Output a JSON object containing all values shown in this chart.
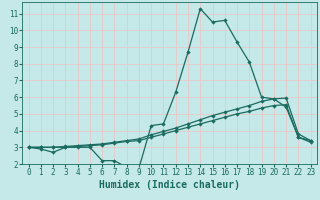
{
  "background_color": "#c5e8e8",
  "grid_color": "#e8c8c8",
  "line_color": "#1a6b60",
  "series": {
    "line1_x": [
      0,
      1,
      2,
      3,
      4,
      5,
      6,
      7,
      8,
      9,
      10,
      11,
      12,
      13,
      14,
      15,
      16,
      17,
      18,
      19,
      20,
      21,
      22,
      23
    ],
    "line1_y": [
      3.0,
      2.9,
      2.7,
      3.0,
      3.0,
      3.0,
      2.2,
      2.2,
      1.8,
      1.75,
      4.3,
      4.4,
      6.3,
      8.7,
      11.3,
      10.5,
      10.6,
      9.3,
      8.1,
      6.0,
      5.9,
      5.4,
      3.6,
      3.4
    ],
    "line2_x": [
      0,
      1,
      2,
      3,
      4,
      5,
      6,
      7,
      8,
      9,
      10,
      11,
      12,
      13,
      14,
      15,
      16,
      17,
      18,
      19,
      20,
      21,
      22,
      23
    ],
    "line2_y": [
      3.0,
      3.0,
      3.0,
      3.05,
      3.1,
      3.15,
      3.2,
      3.3,
      3.4,
      3.5,
      3.75,
      3.95,
      4.15,
      4.4,
      4.65,
      4.9,
      5.1,
      5.3,
      5.5,
      5.75,
      5.9,
      5.95,
      3.8,
      3.4
    ],
    "line3_x": [
      0,
      1,
      2,
      3,
      4,
      5,
      6,
      7,
      8,
      9,
      10,
      11,
      12,
      13,
      14,
      15,
      16,
      17,
      18,
      19,
      20,
      21,
      22,
      23
    ],
    "line3_y": [
      3.0,
      3.0,
      3.0,
      3.0,
      3.05,
      3.1,
      3.15,
      3.25,
      3.35,
      3.4,
      3.6,
      3.8,
      4.0,
      4.2,
      4.4,
      4.6,
      4.8,
      5.0,
      5.15,
      5.35,
      5.5,
      5.55,
      3.6,
      3.3
    ]
  },
  "xlabel": "Humidex (Indice chaleur)",
  "xlim": [
    -0.5,
    23.5
  ],
  "ylim": [
    2.0,
    11.7
  ],
  "yticks": [
    2,
    3,
    4,
    5,
    6,
    7,
    8,
    9,
    10,
    11
  ],
  "xticks": [
    0,
    1,
    2,
    3,
    4,
    5,
    6,
    7,
    8,
    9,
    10,
    11,
    12,
    13,
    14,
    15,
    16,
    17,
    18,
    19,
    20,
    21,
    22,
    23
  ],
  "marker": "D",
  "markersize": 2.2,
  "linewidth": 0.9,
  "xlabel_fontsize": 7,
  "tick_fontsize": 5.5
}
